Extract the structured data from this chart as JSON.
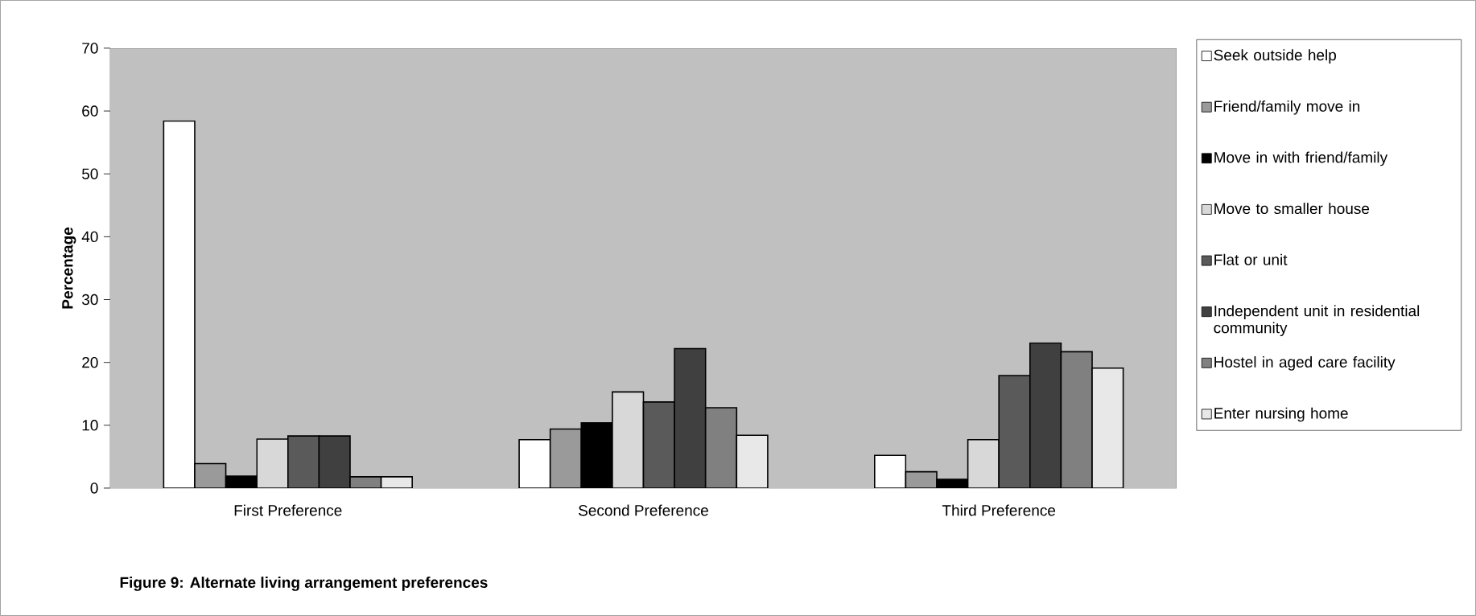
{
  "chart_data": {
    "type": "bar",
    "ylabel": "Percentage",
    "categories": [
      "First Preference",
      "Second Preference",
      "Third Preference"
    ],
    "series": [
      {
        "name": "Seek outside help",
        "color": "#ffffff",
        "values": [
          58.4,
          7.7,
          5.2
        ]
      },
      {
        "name": "Friend/family move in",
        "color": "#9a9a9a",
        "values": [
          3.9,
          9.4,
          2.6
        ]
      },
      {
        "name": "Move in with friend/family",
        "color": "#000000",
        "values": [
          1.9,
          10.4,
          1.4
        ]
      },
      {
        "name": "Move to smaller house",
        "color": "#d8d8d8",
        "values": [
          7.8,
          15.3,
          7.7
        ]
      },
      {
        "name": "Flat or unit",
        "color": "#5a5a5a",
        "values": [
          8.3,
          13.7,
          17.9
        ]
      },
      {
        "name": "Independent unit in residential community",
        "color": "#404040",
        "values": [
          8.3,
          22.2,
          23.1
        ]
      },
      {
        "name": "Hostel in aged care facility",
        "color": "#808080",
        "values": [
          1.8,
          12.8,
          21.7
        ]
      },
      {
        "name": "Enter nursing home",
        "color": "#e8e8e8",
        "values": [
          1.8,
          8.4,
          19.1
        ]
      }
    ],
    "ylim": [
      0,
      70
    ],
    "yticks": [
      0,
      10,
      20,
      30,
      40,
      50,
      60,
      70
    ],
    "grid": false,
    "legend": "right",
    "annotations": [
      "**Figure 9: Alternate living arrangement preferences**"
    ]
  }
}
